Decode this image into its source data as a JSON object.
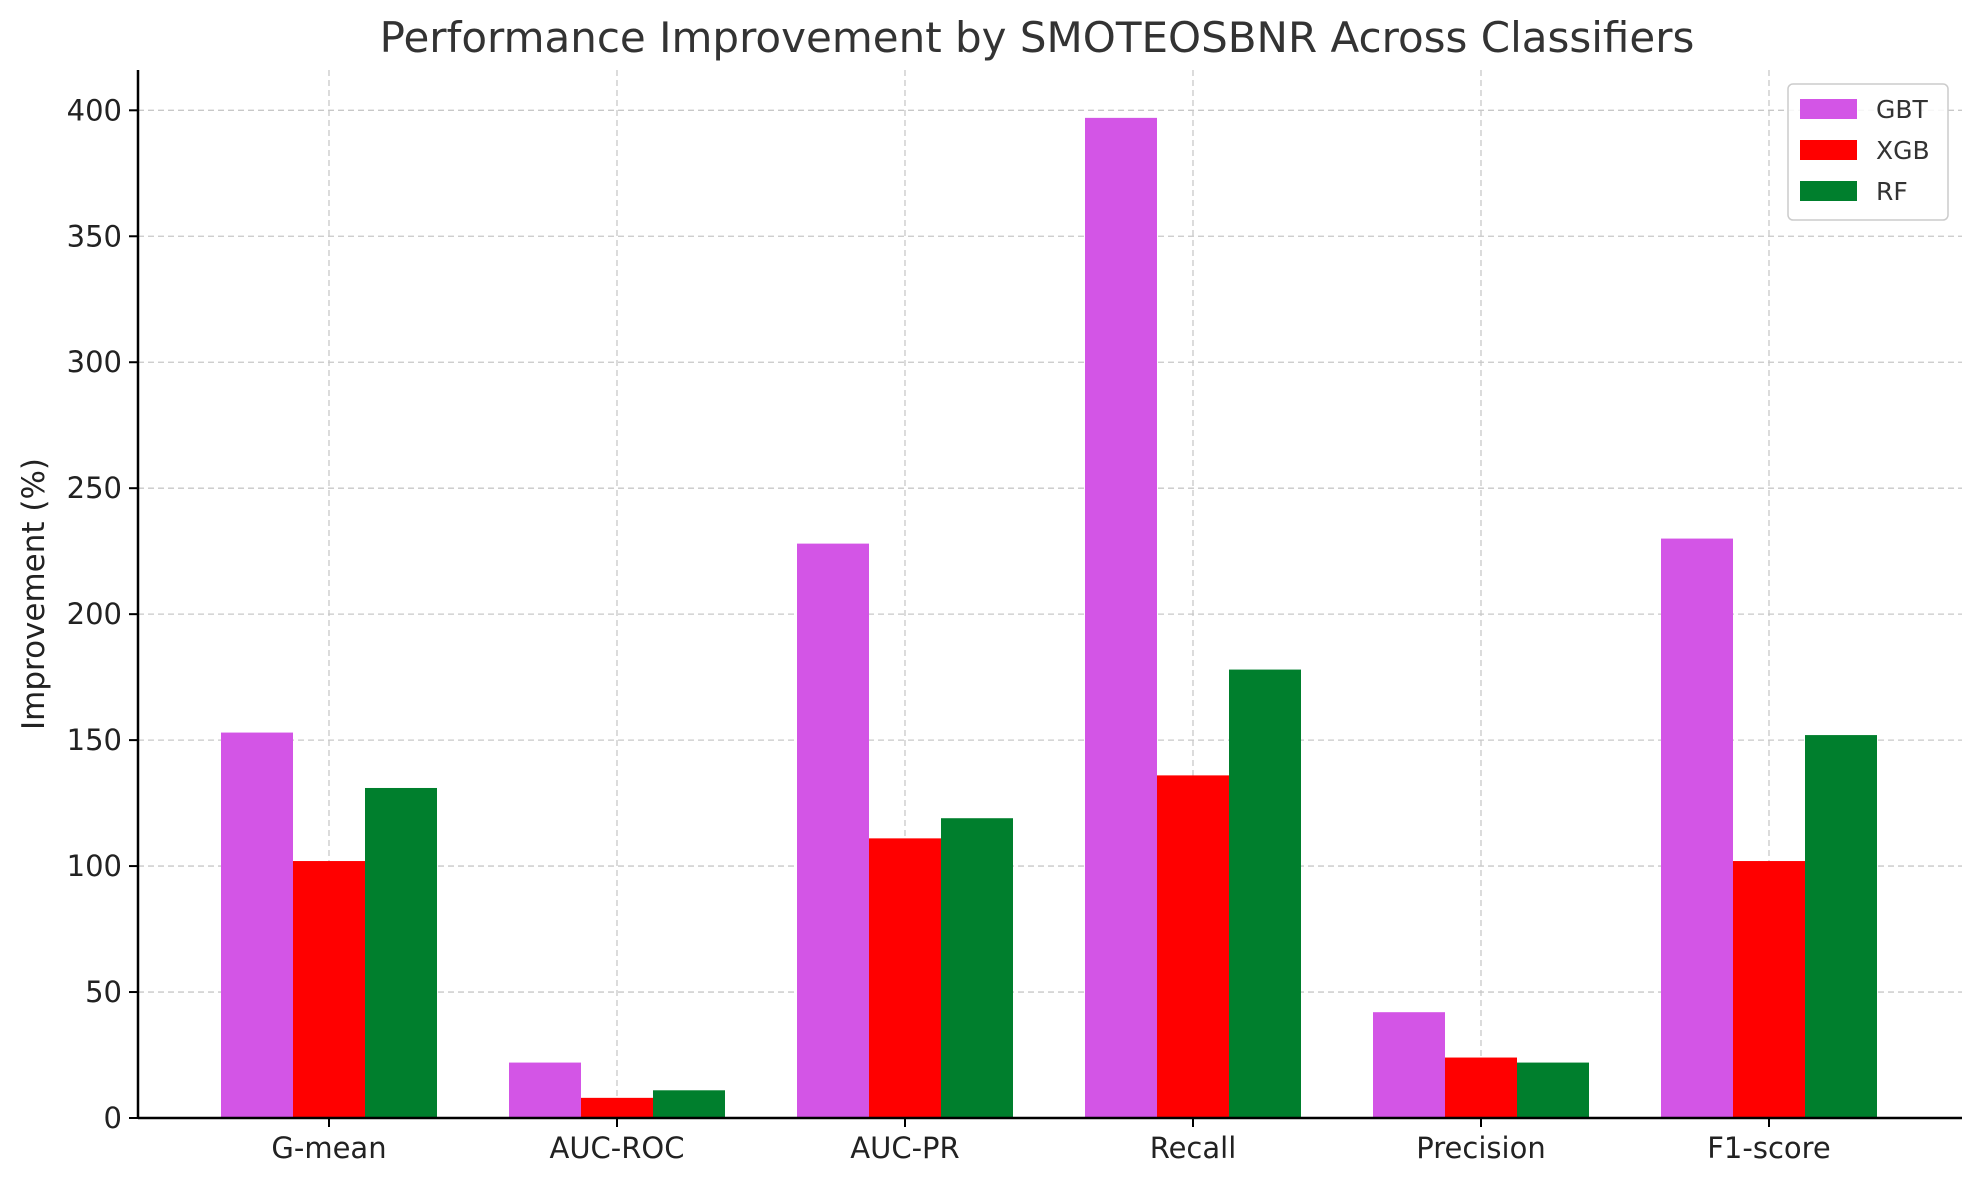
{
  "chart_data": {
    "type": "bar",
    "title": "Performance Improvement by SMOTEOSBNR Across Classifiers",
    "xlabel": "",
    "ylabel": "Improvement (%)",
    "categories": [
      "G-mean",
      "AUC-ROC",
      "AUC-PR",
      "Recall",
      "Precision",
      "F1-score"
    ],
    "series": [
      {
        "name": "GBT",
        "color": "#d355e6",
        "values": [
          153,
          22,
          228,
          397,
          42,
          230
        ]
      },
      {
        "name": "XGB",
        "color": "#ff0000",
        "values": [
          102,
          8,
          111,
          136,
          24,
          102
        ]
      },
      {
        "name": "RF",
        "color": "#007f2d",
        "values": [
          131,
          11,
          119,
          178,
          22,
          152
        ]
      }
    ],
    "ylim": [
      0,
      416
    ],
    "yticks": [
      0,
      50,
      100,
      150,
      200,
      250,
      300,
      350,
      400
    ],
    "grid": true,
    "legend_position": "top-right"
  }
}
